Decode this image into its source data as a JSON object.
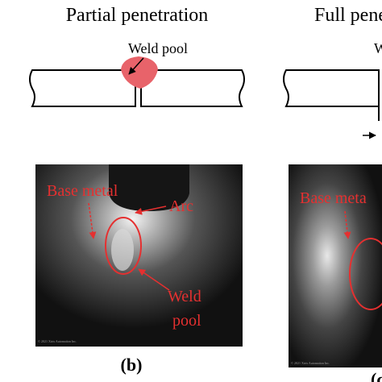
{
  "panels": [
    {
      "title": "Partial penetration",
      "diagram_label": "Weld pool",
      "photo": {
        "labels": [
          "Base metal",
          "Arc",
          "Weld",
          "pool"
        ],
        "watermark": "© 2021 Xiris Automation Inc."
      },
      "caption": "(b)"
    },
    {
      "title": "Full pene",
      "diagram_label": "W",
      "photo": {
        "labels": [
          "Base meta"
        ],
        "watermark": "© 2021 Xiris Automation Inc."
      },
      "caption": "(c"
    }
  ]
}
